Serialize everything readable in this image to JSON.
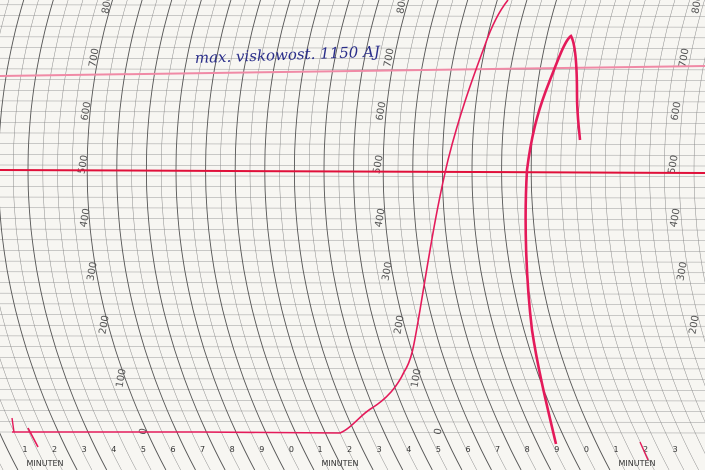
{
  "annotation": "max. viskowost. 1150 AJ",
  "scale_labels": [
    "0",
    "100",
    "200",
    "300",
    "400",
    "500",
    "600",
    "700",
    "800"
  ],
  "minute_labels": [
    "1",
    "2",
    "3",
    "4",
    "5",
    "6",
    "7",
    "8",
    "9",
    "0"
  ],
  "minute_unit": "MINUTEN"
}
